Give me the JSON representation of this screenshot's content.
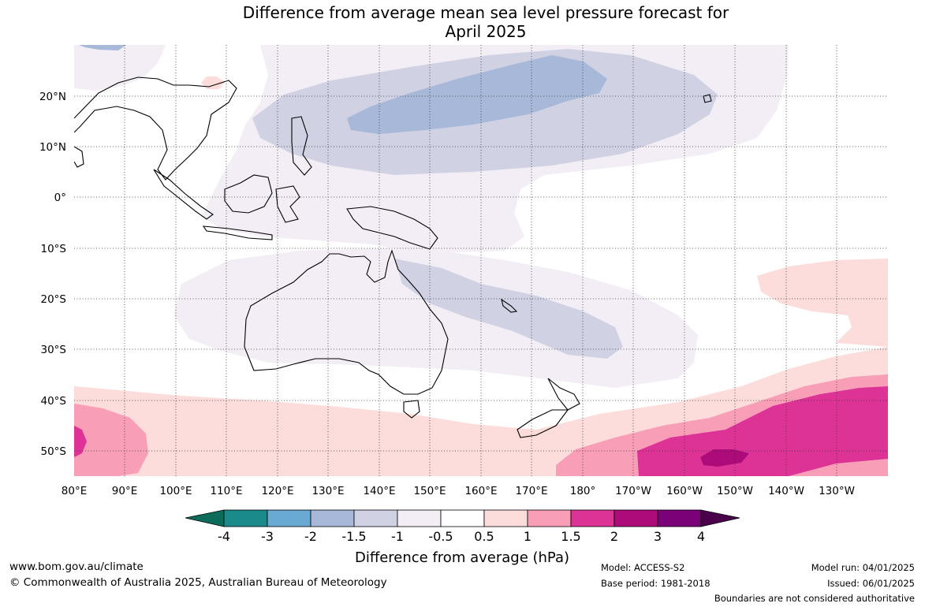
{
  "title": {
    "line1": "Difference from average mean sea level pressure forecast for",
    "line2": "April 2025"
  },
  "map": {
    "lat_labels": [
      "20°N",
      "10°N",
      "0°",
      "10°S",
      "20°S",
      "30°S",
      "40°S",
      "50°S"
    ],
    "lon_labels": [
      "80°E",
      "90°E",
      "100°E",
      "110°E",
      "120°E",
      "130°E",
      "140°E",
      "150°E",
      "160°E",
      "170°E",
      "180°",
      "170°W",
      "160°W",
      "150°W",
      "140°W",
      "130°W"
    ]
  },
  "colorbar": {
    "ticks": [
      "-4",
      "-3",
      "-2",
      "-1.5",
      "-1",
      "-0.5",
      "0.5",
      "1",
      "1.5",
      "2",
      "3",
      "4"
    ],
    "colors": [
      "#1a8a8a",
      "#69aad2",
      "#a7b8d8",
      "#d0d2e4",
      "#f3eef5",
      "#ffffff",
      "#fddcdc",
      "#f89fb7",
      "#dd3397",
      "#ad0a7a",
      "#7a0177"
    ],
    "under_color": "#0d6b5a",
    "over_color": "#4a004a",
    "title": "Difference from average (hPa)"
  },
  "footer": {
    "website": "www.bom.gov.au/climate",
    "copyright": "© Commonwealth of Australia 2025, Australian Bureau of Meteorology",
    "model": "Model: ACCESS-S2",
    "base_period": "Base period: 1981-2018",
    "model_run": "Model run: 04/01/2025",
    "issued": "Issued: 06/01/2025",
    "disclaimer": "Boundaries are not considered authoritative"
  }
}
